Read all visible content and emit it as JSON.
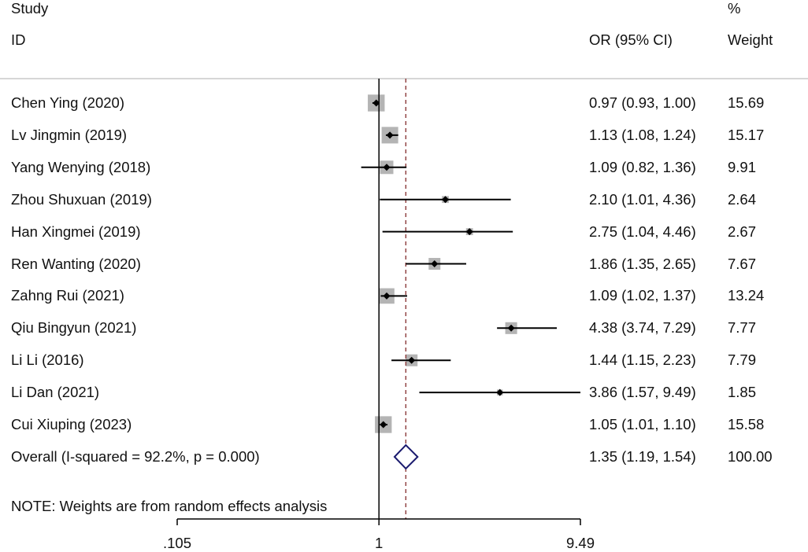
{
  "chart_data": {
    "type": "forest",
    "header": {
      "study_line1": "Study",
      "study_line2": "ID",
      "or_header": "OR (95% CI)",
      "weight_line1": "%",
      "weight_line2": "Weight"
    },
    "studies": [
      {
        "label": "Chen Ying (2020)",
        "or": 0.97,
        "lo": 0.93,
        "hi": 1.0,
        "or_text": "0.97 (0.93, 1.00)",
        "weight": 15.69,
        "weight_text": "15.69"
      },
      {
        "label": "Lv Jingmin (2019)",
        "or": 1.13,
        "lo": 1.08,
        "hi": 1.24,
        "or_text": "1.13 (1.08, 1.24)",
        "weight": 15.17,
        "weight_text": "15.17"
      },
      {
        "label": "Yang Wenying (2018)",
        "or": 1.09,
        "lo": 0.82,
        "hi": 1.36,
        "or_text": "1.09 (0.82, 1.36)",
        "weight": 9.91,
        "weight_text": "9.91"
      },
      {
        "label": "Zhou Shuxuan (2019)",
        "or": 2.1,
        "lo": 1.01,
        "hi": 4.36,
        "or_text": "2.10 (1.01, 4.36)",
        "weight": 2.64,
        "weight_text": "2.64"
      },
      {
        "label": "Han Xingmei (2019)",
        "or": 2.75,
        "lo": 1.04,
        "hi": 4.46,
        "or_text": "2.75 (1.04, 4.46)",
        "weight": 2.67,
        "weight_text": "2.67"
      },
      {
        "label": "Ren Wanting (2020)",
        "or": 1.86,
        "lo": 1.35,
        "hi": 2.65,
        "or_text": "1.86 (1.35, 2.65)",
        "weight": 7.67,
        "weight_text": "7.67"
      },
      {
        "label": "Zahng Rui (2021)",
        "or": 1.09,
        "lo": 1.02,
        "hi": 1.37,
        "or_text": "1.09 (1.02, 1.37)",
        "weight": 13.24,
        "weight_text": "13.24"
      },
      {
        "label": "Qiu Bingyun (2021)",
        "or": 4.38,
        "lo": 3.74,
        "hi": 7.29,
        "or_text": "4.38 (3.74, 7.29)",
        "weight": 7.77,
        "weight_text": "7.77"
      },
      {
        "label": "Li Li (2016)",
        "or": 1.44,
        "lo": 1.15,
        "hi": 2.23,
        "or_text": "1.44 (1.15, 2.23)",
        "weight": 7.79,
        "weight_text": "7.79"
      },
      {
        "label": "Li Dan (2021)",
        "or": 3.86,
        "lo": 1.57,
        "hi": 9.49,
        "or_text": "3.86 (1.57, 9.49)",
        "weight": 1.85,
        "weight_text": "1.85"
      },
      {
        "label": "Cui Xiuping (2023)",
        "or": 1.05,
        "lo": 1.01,
        "hi": 1.1,
        "or_text": "1.05 (1.01, 1.10)",
        "weight": 15.58,
        "weight_text": "15.58"
      }
    ],
    "overall": {
      "label": "Overall  (I-squared = 92.2%, p = 0.000)",
      "or": 1.35,
      "lo": 1.19,
      "hi": 1.54,
      "or_text": "1.35 (1.19, 1.54)",
      "weight_text": "100.00"
    },
    "note": "NOTE: Weights are from random effects analysis",
    "x_scale": "log",
    "x_range": [
      0.105,
      9.49
    ],
    "x_ticks": [
      {
        "value": 0.105,
        "label": ".105"
      },
      {
        "value": 1,
        "label": "1"
      },
      {
        "value": 9.49,
        "label": "9.49"
      }
    ],
    "null_line": 1,
    "colors": {
      "box": "#b4b4b4",
      "point": "#000000",
      "ci_line": "#000000",
      "overall_diamond": "#1a1a6e",
      "overall_dashed": "#8b3a3a",
      "axis": "#000000",
      "separator": "#c8c8c8"
    }
  }
}
